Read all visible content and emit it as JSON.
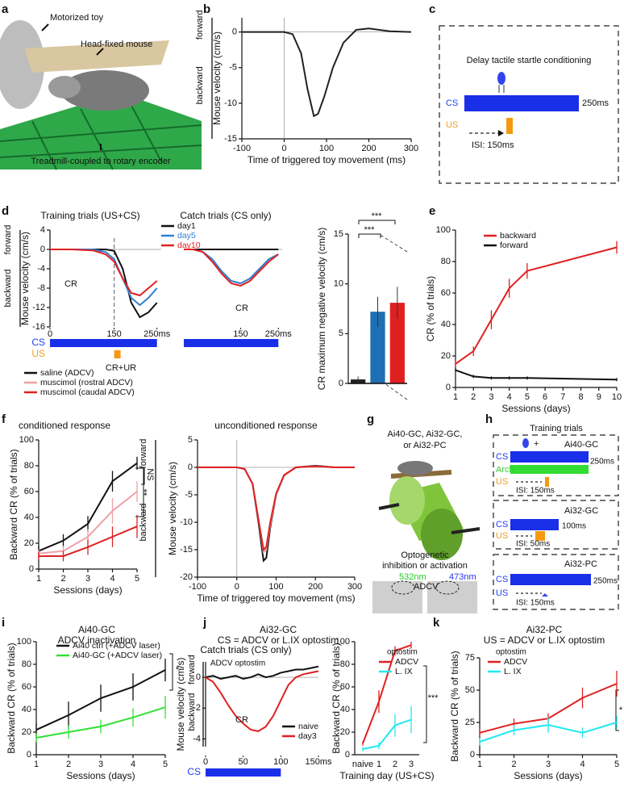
{
  "panels": {
    "letters": [
      "a",
      "b",
      "c",
      "d",
      "e",
      "f",
      "g",
      "h",
      "i",
      "j",
      "k"
    ]
  },
  "diagrams": {
    "a": {
      "toy": "Motorized toy",
      "mouse": "Head-fixed mouse",
      "treadmill": "Treadmill-coupled to rotary encoder"
    },
    "c": {
      "title": "Delay tactile startle conditioning",
      "cs": "CS",
      "us": "US",
      "duration": "250ms",
      "isi": "ISI: 150ms"
    },
    "g": {
      "lines": [
        "Ai40-GC, Ai32-GC,",
        "or Ai32-PC"
      ],
      "opto": [
        "Optogenetic",
        "inhibition or activation"
      ],
      "green": "532nm",
      "blue": "473nm",
      "region": "ADCV"
    },
    "h": {
      "title": "Training trials",
      "boxes": [
        {
          "name": "Ai40-GC",
          "plus": "+",
          "cs": "CS",
          "arch": "Arch",
          "us": "US",
          "duration": "250ms",
          "isi": "ISI: 150ms"
        },
        {
          "name": "Ai32-GC",
          "cs": "CS",
          "us": "US",
          "duration": "100ms",
          "isi": "ISI: 50ms"
        },
        {
          "name": "Ai32-PC",
          "cs": "CS",
          "us": "US",
          "duration": "250ms",
          "isi": "ISI: 150ms"
        }
      ]
    }
  },
  "chart_data": [
    {
      "type": "line",
      "x_label": "Time of triggered toy movement (ms)",
      "y_label": "Mouse velocity (cm/s)",
      "up_label": "forward",
      "down_label": "backward",
      "x": [
        -100,
        -50,
        0,
        20,
        40,
        55,
        70,
        80,
        95,
        115,
        140,
        170,
        200,
        250,
        300
      ],
      "series": [
        {
          "color": "#222222",
          "values": [
            0,
            0,
            0,
            -0.3,
            -3,
            -8,
            -11.8,
            -11.5,
            -9,
            -5,
            -1.5,
            0.3,
            0.5,
            0.1,
            0
          ]
        }
      ],
      "xlim": [
        -100,
        300
      ],
      "ylim": [
        -15,
        2
      ],
      "xticks": [
        -100,
        0,
        100,
        200,
        300
      ],
      "yticks": [
        0,
        -5,
        -10,
        -15
      ],
      "zero_line": true,
      "x_zero_line": true
    },
    {
      "type": "line",
      "title": "Training trials (US+CS)",
      "y_label": "Mouse velocity (cm/s)",
      "up_label": "forward",
      "down_label": "backward",
      "x": [
        0,
        50,
        100,
        130,
        150,
        170,
        190,
        210,
        230,
        250
      ],
      "series": [
        {
          "name": "day1",
          "color": "#111111",
          "values": [
            0,
            0,
            0,
            0,
            -0.3,
            -4,
            -11,
            -14,
            -13,
            -11
          ]
        },
        {
          "name": "day5",
          "color": "#2f7fd0",
          "values": [
            0,
            0,
            0,
            -0.5,
            -2,
            -6,
            -10,
            -11.5,
            -10,
            -8
          ]
        },
        {
          "name": "day10",
          "color": "#e02020",
          "values": [
            0,
            0,
            -0.2,
            -1,
            -2.5,
            -6,
            -9,
            -9.5,
            -8,
            -6.5
          ]
        }
      ],
      "xlim": [
        0,
        260
      ],
      "ylim": [
        -16,
        4
      ],
      "xticks": [
        0,
        150,
        {
          "value": 250,
          "label": "250ms"
        }
      ],
      "yticks": [
        4,
        0,
        -4,
        -8,
        -12,
        -16
      ],
      "cs": [
        0,
        250
      ],
      "us": [
        150,
        165
      ],
      "cs_label": "CS",
      "us_label": "US",
      "annotations": [
        "CR",
        "CR+UR"
      ],
      "zero_line": true
    },
    {
      "type": "line",
      "title": "Catch trials (CS only)",
      "x": [
        0,
        25,
        50,
        75,
        100,
        125,
        150,
        175,
        200,
        225,
        250
      ],
      "series": [
        {
          "color": "#111111",
          "values": [
            0,
            0,
            0,
            0,
            0,
            0,
            0,
            0,
            0,
            0,
            0
          ]
        },
        {
          "color": "#2f7fd0",
          "values": [
            0,
            0,
            -0.5,
            -2,
            -4.5,
            -6.5,
            -7,
            -6,
            -4,
            -2,
            -1
          ]
        },
        {
          "color": "#e02020",
          "values": [
            0,
            0,
            -0.5,
            -2.5,
            -5,
            -7,
            -7.5,
            -6.5,
            -4.5,
            -2.5,
            -1
          ]
        }
      ],
      "xlim": [
        0,
        260
      ],
      "ylim": [
        -16,
        4
      ],
      "xticks": [
        150,
        {
          "value": 250,
          "label": "250ms"
        }
      ],
      "cs": [
        0,
        250
      ],
      "annotations": [
        "CR"
      ],
      "zero_line": true
    },
    {
      "type": "bar",
      "y_label": "CR maximum negative velocity (cm/s)",
      "categories": [
        null,
        null,
        null
      ],
      "values": [
        0.4,
        7.2,
        8.1
      ],
      "errors": [
        0.3,
        1.5,
        1.6
      ],
      "colors": [
        "#222222",
        "#1f6fb5",
        "#e02020"
      ],
      "ylim": [
        0,
        15
      ],
      "yticks": [
        0,
        5,
        10,
        15
      ],
      "annotations": [
        "***",
        "***"
      ]
    },
    {
      "type": "line",
      "x_label": "Sessions (days)",
      "y_label": "CR (% of trials)",
      "x": [
        1,
        2,
        3,
        4,
        5,
        10
      ],
      "series": [
        {
          "name": "backward",
          "color": "#e02020",
          "values": [
            15,
            23,
            43,
            63,
            74,
            89
          ],
          "errors": [
            2,
            3,
            6,
            6,
            5,
            4
          ]
        },
        {
          "name": "forward",
          "color": "#111111",
          "values": [
            11,
            7,
            6,
            6,
            6,
            5
          ],
          "errors": [
            1,
            1,
            1,
            1,
            1,
            1
          ]
        }
      ],
      "xlim": [
        1,
        10
      ],
      "ylim": [
        0,
        100
      ],
      "xticks": [
        1,
        2,
        3,
        4,
        5,
        6,
        7,
        8,
        9,
        10
      ],
      "yticks": [
        0,
        20,
        40,
        60,
        80,
        100
      ]
    },
    {
      "type": "line",
      "title": "conditioned response",
      "x_label": "Sessions (days)",
      "y_label": "Backward CR (% of trials)",
      "x": [
        1,
        2,
        3,
        4,
        5
      ],
      "series": [
        {
          "name": "saline (ADCV)",
          "color": "#111111",
          "values": [
            14,
            22,
            35,
            68,
            82
          ],
          "errors": [
            4,
            5,
            6,
            8,
            5
          ]
        },
        {
          "name": "muscimol (rostral ADCV)",
          "color": "#f0a0a8",
          "values": [
            12,
            14,
            25,
            45,
            60
          ],
          "errors": [
            3,
            4,
            6,
            10,
            8
          ]
        },
        {
          "name": "muscimol (caudal ADCV)",
          "color": "#e02020",
          "values": [
            10,
            10,
            17,
            25,
            33
          ],
          "errors": [
            3,
            4,
            6,
            8,
            9
          ]
        }
      ],
      "xlim": [
        1,
        5
      ],
      "ylim": [
        0,
        100
      ],
      "xticks": [
        1,
        2,
        3,
        4,
        5
      ],
      "yticks": [
        0,
        20,
        40,
        60,
        80,
        100
      ],
      "annotations": [
        "NS",
        "**"
      ]
    },
    {
      "type": "line",
      "title": "unconditioned response",
      "x_label": "Time of triggered toy movement (ms)",
      "y_label": "Mouse velocity (cm/s)",
      "up_label": "forward",
      "down_label": "backward",
      "x": [
        -100,
        -50,
        0,
        20,
        40,
        55,
        68,
        75,
        85,
        100,
        120,
        150,
        200,
        250,
        300
      ],
      "series": [
        {
          "color": "#111111",
          "values": [
            0,
            0,
            0,
            -0.3,
            -3,
            -10,
            -17,
            -16.5,
            -11,
            -5,
            -1.5,
            0,
            0.3,
            0,
            0
          ]
        },
        {
          "color": "#f0a0a8",
          "values": [
            0,
            0,
            0,
            -0.3,
            -3,
            -9.5,
            -15.5,
            -15,
            -10.5,
            -5,
            -1.5,
            0,
            0.2,
            0,
            0
          ]
        },
        {
          "color": "#e02020",
          "values": [
            0,
            0,
            0,
            -0.3,
            -3,
            -9.5,
            -15,
            -14.5,
            -10,
            -4.8,
            -1.4,
            0,
            0.2,
            0,
            0
          ]
        }
      ],
      "xlim": [
        -100,
        300
      ],
      "ylim": [
        -20,
        5
      ],
      "xticks": [
        -100,
        0,
        100,
        200,
        300
      ],
      "yticks": [
        5,
        0,
        -5,
        -10,
        -15,
        -20
      ],
      "zero_line": true,
      "x_zero_line": true
    },
    {
      "type": "line",
      "heading_lines": [
        "Ai40-GC",
        "ADCV inactivation"
      ],
      "x_label": "Sessions (days)",
      "y_label": "Backward CR (% of trials)",
      "x": [
        1,
        2,
        3,
        4,
        5
      ],
      "series": [
        {
          "name": "Ai40 ctrl (+ADCV laser)",
          "color": "#111111",
          "values": [
            22,
            35,
            50,
            60,
            75
          ],
          "errors": [
            6,
            12,
            12,
            12,
            10
          ]
        },
        {
          "name": "Ai40-GC (+ADCV laser)",
          "color": "#33e033",
          "values": [
            15,
            20,
            25,
            33,
            42
          ],
          "errors": [
            4,
            6,
            6,
            8,
            10
          ]
        }
      ],
      "xlim": [
        1,
        5
      ],
      "ylim": [
        0,
        100
      ],
      "xticks": [
        1,
        2,
        3,
        4,
        5
      ],
      "yticks": [
        0,
        20,
        40,
        60,
        80,
        100
      ],
      "annotations": [
        "*"
      ]
    },
    {
      "type": "line",
      "heading_lines": [
        "Ai32-GC",
        "CS = ADCV or L.IX optostim"
      ],
      "title": "Catch trials (CS only)",
      "subtitle": "ADCV optostim",
      "y_label": "Mouse velocity (cm/s)",
      "up_label": "forward",
      "down_label": "backward",
      "x": [
        0,
        10,
        20,
        30,
        40,
        50,
        60,
        70,
        80,
        90,
        100,
        110,
        120,
        130,
        140,
        150
      ],
      "series": [
        {
          "name": "naive",
          "color": "#111111",
          "values": [
            0,
            0.1,
            -0.1,
            0,
            0.1,
            -0.1,
            0,
            0.2,
            0,
            0.1,
            0.3,
            0.4,
            0.5,
            0.5,
            0.6,
            0.7
          ]
        },
        {
          "name": "day3",
          "color": "#e02020",
          "values": [
            0,
            -0.3,
            -1,
            -1.8,
            -2.5,
            -3,
            -3.4,
            -3.5,
            -3.2,
            -2.5,
            -1.5,
            -0.5,
            0,
            0.2,
            0.3,
            0.4
          ]
        }
      ],
      "xlim": [
        0,
        150
      ],
      "ylim": [
        -4.5,
        1
      ],
      "xticks": [
        0,
        50,
        100,
        {
          "value": 150,
          "label": "150ms"
        }
      ],
      "yticks": [
        0,
        -2,
        -4
      ],
      "cs": [
        0,
        100
      ],
      "cs_label": "CS",
      "annotations": [
        "CR"
      ],
      "zero_line": true
    },
    {
      "type": "line",
      "legend_title": "optostim",
      "x_label": "Training day (US+CS)",
      "y_label": "Backward CR (% of trials)",
      "categories": [
        "naive",
        "1",
        "2",
        "3"
      ],
      "series": [
        {
          "name": "ADCV",
          "color": "#e02020",
          "values": [
            10,
            47,
            92,
            97
          ],
          "errors": [
            2,
            10,
            4,
            3
          ]
        },
        {
          "name": "L. IX",
          "color": "#22e8f0",
          "values": [
            5,
            8,
            26,
            31
          ],
          "errors": [
            2,
            3,
            10,
            12
          ]
        }
      ],
      "ylim": [
        0,
        100
      ],
      "yticks": [
        0,
        20,
        40,
        60,
        80,
        100
      ],
      "annotations": [
        "***"
      ]
    },
    {
      "type": "line",
      "heading_lines": [
        "Ai32-PC",
        "US = ADCV or L.IX optostim"
      ],
      "legend_title": "optostim",
      "x_label": "Sessions (days)",
      "y_label": "Backward CR (% of trials)",
      "x": [
        1,
        2,
        3,
        4,
        5
      ],
      "series": [
        {
          "name": "ADCV",
          "color": "#e02020",
          "values": [
            17,
            24,
            28,
            44,
            55
          ],
          "errors": [
            3,
            4,
            4,
            8,
            10
          ]
        },
        {
          "name": "L. IX",
          "color": "#22e8f0",
          "values": [
            10,
            19,
            23,
            17,
            25
          ],
          "errors": [
            3,
            4,
            6,
            4,
            5
          ]
        }
      ],
      "xlim": [
        1,
        5
      ],
      "ylim": [
        0,
        75
      ],
      "xticks": [
        1,
        2,
        3,
        4,
        5
      ],
      "yticks": [
        0,
        25,
        50,
        75
      ],
      "annotations": [
        "*"
      ]
    }
  ]
}
